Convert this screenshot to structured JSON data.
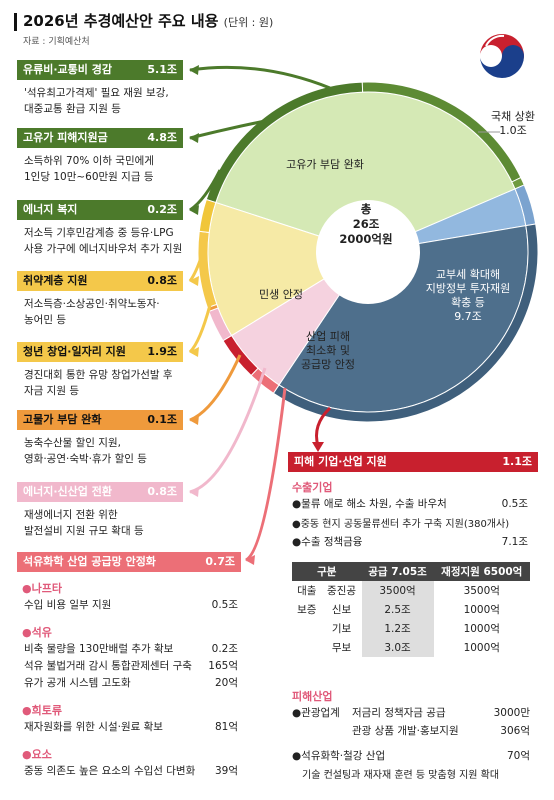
{
  "header": {
    "title": "2026년 추경예산안 주요 내용",
    "unit": "(단위 : 원)",
    "source": "자료 : 기획예산처"
  },
  "colors": {
    "green_dark": "#4c7a2b",
    "green_light": "#d5e9b5",
    "blue_light": "#92b8df",
    "steel": "#4e6f8c",
    "yellow": "#f4c84a",
    "orange": "#ef9a3c",
    "pink": "#f1b8cc",
    "red": "#c8202e",
    "salmon": "#ec6f77"
  },
  "chart_data": {
    "type": "pie",
    "center_label": {
      "line1": "총",
      "line2": "26조",
      "line3": "2000억원"
    },
    "slices": [
      {
        "label": "고유가 부담 완화",
        "value": 10.1
      },
      {
        "label": "국채 상환",
        "value": 1.0,
        "display": "1.0조"
      },
      {
        "label": "교부세 확대해 지방정부 투자재원 확충 등",
        "value": 9.7,
        "display": "9.7조"
      },
      {
        "label": "산업 피해 최소화 및 공급망 안정",
        "value": 1.8
      },
      {
        "label": "민생 안정",
        "value": 3.6
      }
    ],
    "outer_ring": [
      {
        "label": "유류비·교통비 경감",
        "value": 5.1
      },
      {
        "label": "고유가 피해지원금",
        "value": 4.8
      },
      {
        "label": "에너지 복지",
        "value": 0.2
      },
      {
        "label": "취약계층 지원",
        "value": 0.8
      },
      {
        "label": "청년 창업·일자리 지원",
        "value": 1.9
      },
      {
        "label": "고물가 부담 완화",
        "value": 0.1
      },
      {
        "label": "에너지·신산업 전환",
        "value": 0.8
      },
      {
        "label": "석유화학 산업 공급망 안정화",
        "value": 0.7
      },
      {
        "label": "피해 기업·산업 지원",
        "value": 1.1
      }
    ]
  },
  "pie_labels": {
    "gas": "고유가 부담 완화",
    "debt_title": "국채 상환",
    "debt_amt": "1.0조",
    "local_1": "교부세 확대해",
    "local_2": "지방정부 투자재원",
    "local_3": "확충 등",
    "local_amt": "9.7조",
    "livelihood": "민생 안정",
    "ind_1": "산업 피해",
    "ind_2": "최소화 및",
    "ind_3": "공급망 안정"
  },
  "left_items": [
    {
      "name": "유류비·교통비 경감",
      "amount": "5.1조",
      "desc1": "'석유최고가격제' 필요 재원 보강,",
      "desc2": "대중교통 환급 지원 등"
    },
    {
      "name": "고유가 피해지원금",
      "amount": "4.8조",
      "desc1": "소득하위 70% 이하 국민에게",
      "desc2": "1인당 10만~60만원 지급 등"
    },
    {
      "name": "에너지 복지",
      "amount": "0.2조",
      "desc1": "저소득 기후민감계층 중 등유·LPG",
      "desc2": "사용 가구에 에너지바우처 추가 지원"
    },
    {
      "name": "취약계층 지원",
      "amount": "0.8조",
      "desc1": "저소득층·소상공인·취약노동자·",
      "desc2": "농어민 등"
    },
    {
      "name": "청년 창업·일자리 지원",
      "amount": "1.9조",
      "desc1": "경진대회 통한 유망 창업가선발 후",
      "desc2": "자금 지원 등"
    },
    {
      "name": "고물가 부담 완화",
      "amount": "0.1조",
      "desc1": "농축수산물 할인 지원,",
      "desc2": "영화·공연·숙박·휴가 할인 등"
    },
    {
      "name": "에너지·신산업 전환",
      "amount": "0.8조",
      "desc1": "재생에너지 전환 위한",
      "desc2": "발전설비 지원 규모 확대 등"
    }
  ],
  "petro": {
    "name": "석유화학 산업 공급망 안정화",
    "amount": "0.7조",
    "naphtha": {
      "title": "●나프타",
      "rows": [
        {
          "text": "수입 비용 일부 지원",
          "amt": "0.5조"
        }
      ]
    },
    "oil": {
      "title": "●석유",
      "rows": [
        {
          "text": "비축 물량을 130만배럴 추가 확보",
          "amt": "0.2조"
        },
        {
          "text": "석유 불법거래 감시 통합관제센터 구축",
          "amt": "165억"
        },
        {
          "text": "유가 공개 시스템 고도화",
          "amt": "20억"
        }
      ]
    },
    "rare": {
      "title": "●희토류",
      "rows": [
        {
          "text": "재자원화를 위한 시설·원료 확보",
          "amt": "81억"
        }
      ]
    },
    "urea": {
      "title": "●요소",
      "rows": [
        {
          "text": "중동 의존도 높은 요소의 수입선 다변화",
          "amt": "39억"
        }
      ]
    }
  },
  "right_panel": {
    "name": "피해 기업·산업 지원",
    "amount": "1.1조",
    "export": {
      "title": "수출기업",
      "rows": [
        {
          "text": "●물류 애로 해소 차원, 수출 바우처",
          "amt": "0.5조"
        },
        {
          "text": "●중동 현지 공동물류센터 추가 구축 지원(380개사)",
          "amt": ""
        },
        {
          "text": "●수출 정책금융",
          "amt": "7.1조"
        }
      ]
    },
    "table": {
      "headers": [
        "구분",
        "공급 7.05조",
        "재정지원 6500억"
      ],
      "rows": [
        {
          "g1": "대출",
          "g2": "중진공",
          "supply": "3500억",
          "fiscal": "3500억"
        },
        {
          "g1": "보증",
          "g2": "신보",
          "supply": "2.5조",
          "fiscal": "1000억"
        },
        {
          "g1": "",
          "g2": "기보",
          "supply": "1.2조",
          "fiscal": "1000억"
        },
        {
          "g1": "",
          "g2": "무보",
          "supply": "3.0조",
          "fiscal": "1000억"
        }
      ]
    },
    "damaged": {
      "title": "피해산업",
      "tourism": "●관광업계",
      "t_rows": [
        {
          "text": "저금리 정책자금 공급",
          "amt": "3000만"
        },
        {
          "text": "관광 상품 개발·홍보지원",
          "amt": "306억"
        }
      ],
      "petro_row": {
        "text": "●석유화학·철강 산업",
        "amt": "70억"
      },
      "petro_desc": "기술 컨설팅과 재자재 훈련 등 맞춤형 지원 확대"
    }
  }
}
